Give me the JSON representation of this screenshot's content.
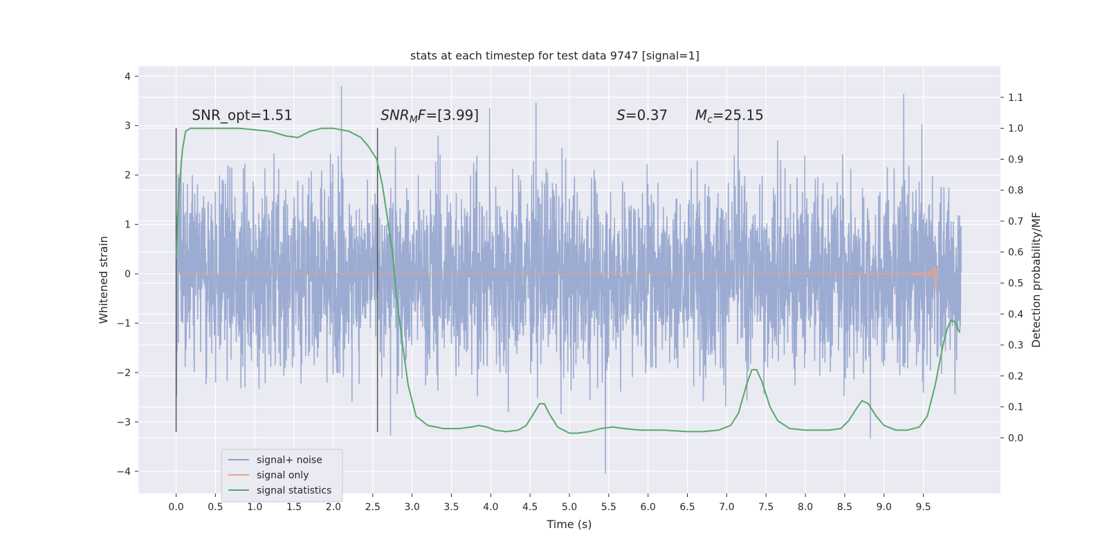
{
  "chart_data": {
    "type": "line",
    "title": "stats at each timestep for test data 9747 [signal=1]",
    "xlabel": "Time (s)",
    "ylabel": "Whitened strain",
    "y2label": "Detection probability/MF",
    "xlim": [
      -0.48,
      10.48
    ],
    "ylim": [
      -4.45,
      4.2
    ],
    "y2lim": [
      -0.18,
      1.2
    ],
    "xticks": [
      0.0,
      0.5,
      1.0,
      1.5,
      2.0,
      2.5,
      3.0,
      3.5,
      4.0,
      4.5,
      5.0,
      5.5,
      6.0,
      6.5,
      7.0,
      7.5,
      8.0,
      8.5,
      9.0,
      9.5
    ],
    "yticks": [
      -4,
      -3,
      -2,
      -1,
      0,
      1,
      2,
      3,
      4
    ],
    "y2ticks": [
      0.0,
      0.1,
      0.2,
      0.3,
      0.4,
      0.5,
      0.6,
      0.7,
      0.8,
      0.9,
      1.0,
      1.1
    ],
    "grid": true,
    "legend_position": "lower-left",
    "annotations": [
      {
        "id": "snr-opt",
        "text": "SNR_opt=1.51",
        "x": 0.2,
        "y": 3.0
      },
      {
        "id": "snr-mf",
        "text": "SNR_MF=[3.99]",
        "x": 2.6,
        "y": 3.0
      },
      {
        "id": "s-value",
        "text": "S=0.37",
        "x": 5.6,
        "y": 3.0
      },
      {
        "id": "mc-value",
        "text": "M_c=25.15",
        "x": 6.6,
        "y": 3.0
      }
    ],
    "vlines": [
      {
        "x": 0.0,
        "ymin": -3.2,
        "ymax": 2.95
      },
      {
        "x": 2.56,
        "ymin": -3.2,
        "ymax": 2.95
      }
    ],
    "series": [
      {
        "name": "signal+ noise",
        "color": "#8da0cb",
        "axis": "left",
        "x_range": [
          0.0,
          9.98
        ],
        "typical_abs": 1.5,
        "min": -4.05,
        "max": 3.8
      },
      {
        "name": "signal only",
        "color": "#e8a287",
        "axis": "left",
        "x_range": [
          0.0,
          9.68
        ],
        "peak_x": 9.66,
        "peak_amplitude": 0.35
      },
      {
        "name": "signal statistics",
        "color": "#55a868",
        "axis": "right",
        "x": [
          0.0,
          0.03,
          0.08,
          0.12,
          0.18,
          0.3,
          0.5,
          0.8,
          1.0,
          1.2,
          1.4,
          1.55,
          1.7,
          1.85,
          2.0,
          2.2,
          2.35,
          2.45,
          2.55,
          2.62,
          2.68,
          2.75,
          2.8,
          2.88,
          2.95,
          3.05,
          3.2,
          3.4,
          3.6,
          3.75,
          3.85,
          3.95,
          4.05,
          4.2,
          4.35,
          4.45,
          4.55,
          4.62,
          4.68,
          4.75,
          4.85,
          5.0,
          5.1,
          5.25,
          5.4,
          5.55,
          5.7,
          5.9,
          6.2,
          6.5,
          6.7,
          6.9,
          7.05,
          7.15,
          7.25,
          7.32,
          7.38,
          7.45,
          7.55,
          7.65,
          7.8,
          8.0,
          8.3,
          8.45,
          8.55,
          8.65,
          8.72,
          8.8,
          8.9,
          9.0,
          9.15,
          9.3,
          9.45,
          9.55,
          9.65,
          9.75,
          9.8,
          9.85,
          9.9,
          9.96
        ],
        "y": [
          0.58,
          0.78,
          0.93,
          0.99,
          1.0,
          1.0,
          1.0,
          1.0,
          0.995,
          0.99,
          0.975,
          0.97,
          0.99,
          1.0,
          1.0,
          0.99,
          0.97,
          0.94,
          0.9,
          0.82,
          0.72,
          0.6,
          0.46,
          0.3,
          0.17,
          0.07,
          0.04,
          0.03,
          0.03,
          0.035,
          0.04,
          0.035,
          0.025,
          0.02,
          0.025,
          0.04,
          0.08,
          0.11,
          0.11,
          0.075,
          0.035,
          0.015,
          0.015,
          0.02,
          0.03,
          0.035,
          0.03,
          0.025,
          0.025,
          0.02,
          0.02,
          0.025,
          0.04,
          0.08,
          0.17,
          0.22,
          0.22,
          0.18,
          0.1,
          0.055,
          0.03,
          0.025,
          0.025,
          0.03,
          0.055,
          0.095,
          0.12,
          0.11,
          0.07,
          0.04,
          0.025,
          0.025,
          0.035,
          0.07,
          0.17,
          0.3,
          0.35,
          0.38,
          0.375,
          0.34
        ]
      }
    ]
  }
}
